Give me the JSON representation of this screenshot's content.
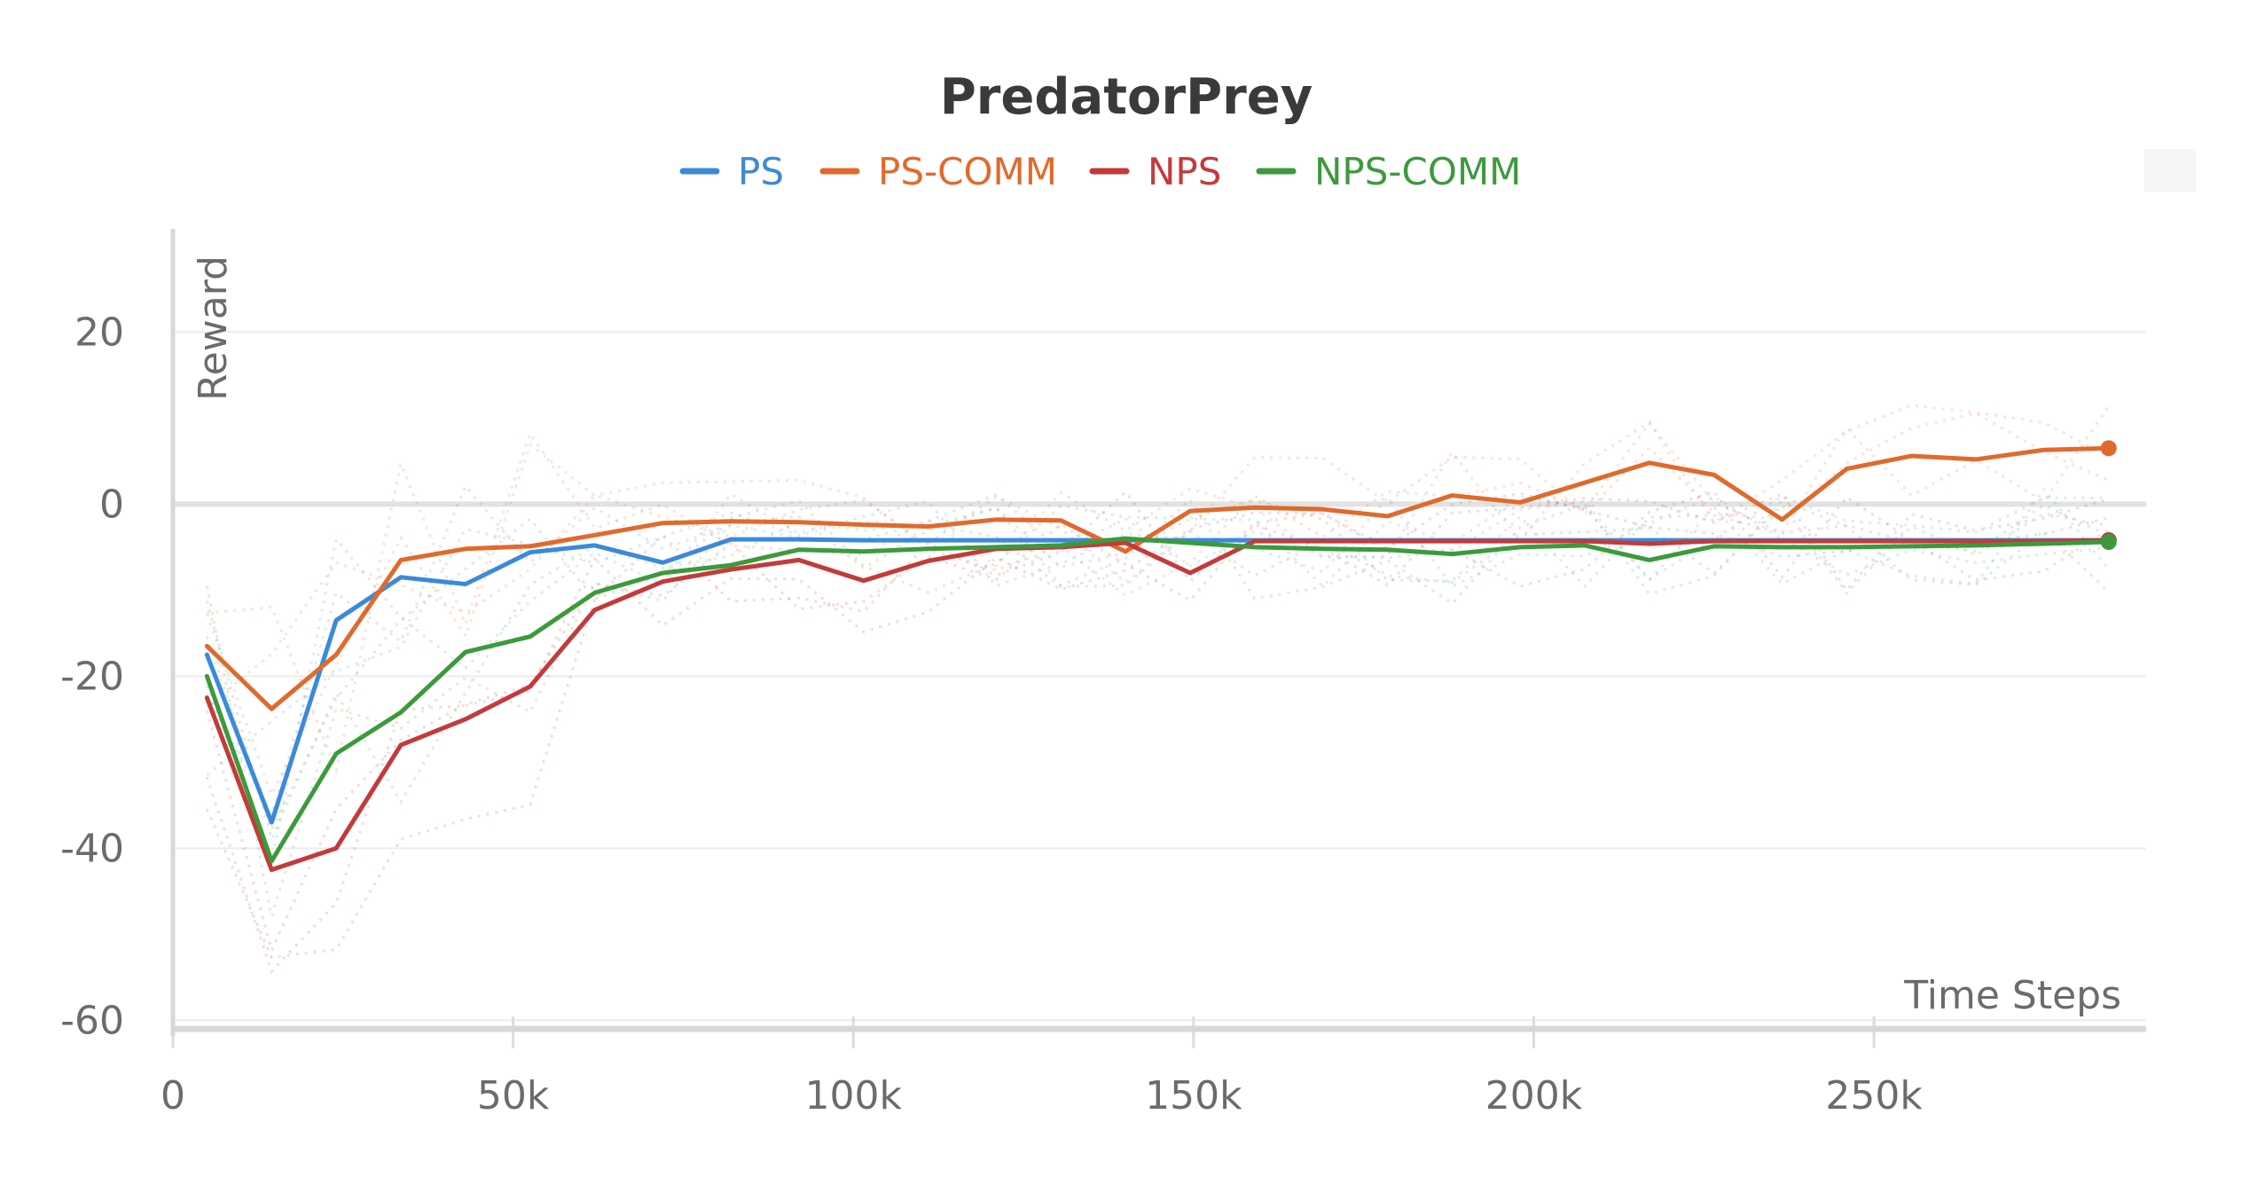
{
  "chart_data": {
    "type": "line",
    "title": "PredatorPrey",
    "xlabel": "Time Steps",
    "ylabel": "Reward",
    "xlim": [
      0,
      290000
    ],
    "ylim": [
      -61,
      32
    ],
    "xticks": [
      0,
      50000,
      100000,
      150000,
      200000,
      250000
    ],
    "xtick_labels": [
      "0",
      "50k",
      "100k",
      "150k",
      "200k",
      "250k"
    ],
    "yticks": [
      20,
      0,
      -20,
      -40,
      -60
    ],
    "ytick_labels": [
      "20",
      "0",
      "-20",
      "-40",
      "-60"
    ],
    "grid": true,
    "legend_position": "top-center",
    "x": [
      5000,
      14500,
      24000,
      33500,
      43000,
      52500,
      62000,
      72000,
      82000,
      92000,
      101500,
      111000,
      121000,
      130500,
      140000,
      149500,
      159000,
      169000,
      178500,
      188000,
      198000,
      207500,
      217000,
      226500,
      236500,
      246000,
      255500,
      265000,
      275000,
      284500
    ],
    "series": [
      {
        "name": "PS",
        "color": "#3b8ad9",
        "values": [
          -17.5,
          -37,
          -13.5,
          -8.5,
          -9.3,
          -5.6,
          -4.8,
          -6.8,
          -4.1,
          -4.1,
          -4.2,
          -4.2,
          -4.2,
          -4.2,
          -4.2,
          -4.2,
          -4.2,
          -4.2,
          -4.2,
          -4.2,
          -4.2,
          -4.2,
          -4.2,
          -4.2,
          -4.2,
          -4.2,
          -4.2,
          -4.2,
          -4.2,
          -4.2
        ]
      },
      {
        "name": "PS-COMM",
        "color": "#e06a2c",
        "values": [
          -16.5,
          -23.8,
          -17.5,
          -6.5,
          -5.2,
          -4.9,
          -3.6,
          -2.2,
          -2,
          -2.1,
          -2.4,
          -2.6,
          -1.8,
          -1.9,
          -5.5,
          -0.8,
          -0.4,
          -0.6,
          -1.4,
          1,
          0.2,
          2.5,
          4.8,
          3.4,
          -1.8,
          4.1,
          5.6,
          5.2,
          6.3,
          6.5
        ]
      },
      {
        "name": "NPS",
        "color": "#c43a3a",
        "values": [
          -22.5,
          -42.5,
          -40,
          -28,
          -25,
          -21.2,
          -12.3,
          -9,
          -7.6,
          -6.5,
          -8.9,
          -6.6,
          -5.2,
          -5,
          -4.5,
          -8,
          -4.3,
          -4.3,
          -4.3,
          -4.3,
          -4.3,
          -4.3,
          -4.6,
          -4.3,
          -4.3,
          -4.3,
          -4.3,
          -4.3,
          -4.3,
          -4.2
        ]
      },
      {
        "name": "NPS-COMM",
        "color": "#3c9a3c",
        "values": [
          -20,
          -41.5,
          -29,
          -24.2,
          -17.2,
          -15.4,
          -10.3,
          -8,
          -7.1,
          -5.3,
          -5.5,
          -5.2,
          -5,
          -4.8,
          -4,
          -4.5,
          -5,
          -5.2,
          -5.3,
          -5.8,
          -5,
          -4.8,
          -6.5,
          -4.9,
          -5,
          -5,
          -4.9,
          -4.8,
          -4.6,
          -4.4
        ]
      }
    ]
  }
}
